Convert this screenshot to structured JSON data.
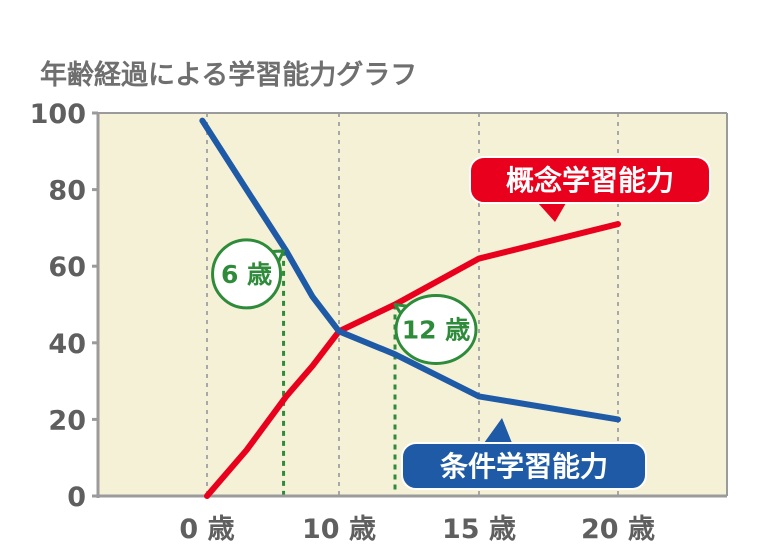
{
  "chart_data": {
    "type": "line",
    "title": "年齢経過による学習能力グラフ",
    "xlabel": "",
    "ylabel": "",
    "x_ticks": [
      {
        "value": 0,
        "label": "0 歳"
      },
      {
        "value": 10,
        "label": "10 歳"
      },
      {
        "value": 15,
        "label": "15 歳"
      },
      {
        "value": 20,
        "label": "20 歳"
      }
    ],
    "y_ticks": [
      0,
      20,
      40,
      60,
      80,
      100
    ],
    "ylim": [
      0,
      100
    ],
    "xlim": [
      -4.7,
      23
    ],
    "grid": true,
    "series": [
      {
        "name": "概念学習能力",
        "color": "#e8001c",
        "x": [
          0,
          3,
          6,
          8,
          10,
          12,
          15,
          20
        ],
        "y": [
          0,
          12,
          26,
          34,
          43,
          50,
          62,
          71
        ]
      },
      {
        "name": "条件学習能力",
        "color": "#1f5aa6",
        "x": [
          -0.2,
          3,
          6,
          8,
          10,
          12,
          15,
          20
        ],
        "y": [
          98,
          80,
          64,
          52,
          43,
          37,
          26,
          20
        ]
      }
    ],
    "annotations": [
      {
        "label": "6 歳",
        "x": 5.8,
        "y": 64,
        "color": "#2e8b3a"
      },
      {
        "label": "12 歳",
        "x": 12,
        "y": 50,
        "color": "#2e8b3a"
      }
    ]
  },
  "colors": {
    "plot_bg": "#f5f1d6",
    "axis": "#9b9b9b",
    "red": "#e8001c",
    "blue": "#1f5aa6",
    "green": "#2e8b3a"
  }
}
